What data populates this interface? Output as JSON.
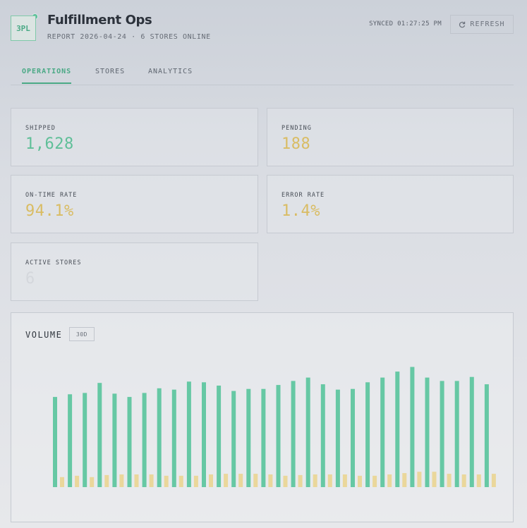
{
  "header": {
    "logo_text": "3PL",
    "title": "Fulfillment Ops",
    "subtitle": "REPORT 2026-04-24 · 6 STORES ONLINE",
    "synced": "SYNCED 01:27:25 PM",
    "refresh_label": "REFRESH"
  },
  "tabs": [
    {
      "label": "OPERATIONS",
      "active": true
    },
    {
      "label": "STORES",
      "active": false
    },
    {
      "label": "ANALYTICS",
      "active": false
    }
  ],
  "metrics": [
    {
      "label": "SHIPPED",
      "value": "1,628",
      "color": "#5fbf98"
    },
    {
      "label": "PENDING",
      "value": "188",
      "color": "#d9bc63"
    },
    {
      "label": "ON-TIME RATE",
      "value": "94.1%",
      "color": "#d9bc63"
    },
    {
      "label": "ERROR RATE",
      "value": "1.4%",
      "color": "#d9bc63"
    },
    {
      "label": "ACTIVE STORES",
      "value": "6",
      "color": "#d4d7dc"
    }
  ],
  "volume": {
    "title": "VOLUME",
    "range_label": "30D"
  },
  "chart_data": {
    "type": "bar",
    "ylim": [
      0,
      190
    ],
    "grid": false,
    "colors": {
      "shipped": "#66c8a4",
      "pending": "#ead79b"
    },
    "series": [
      {
        "key": "shipped",
        "values": [
          135,
          139,
          141,
          156,
          140,
          135,
          141,
          148,
          146,
          158,
          157,
          152,
          144,
          147,
          147,
          153,
          159,
          164,
          154,
          146,
          147,
          157,
          164,
          173,
          180,
          164,
          159,
          159,
          165,
          154
        ]
      },
      {
        "key": "pending",
        "values": [
          15,
          17,
          15,
          18,
          19,
          19,
          19,
          17,
          17,
          17,
          19,
          20,
          20,
          20,
          19,
          17,
          18,
          19,
          19,
          19,
          17,
          17,
          19,
          21,
          23,
          23,
          20,
          19,
          19,
          20
        ]
      }
    ]
  }
}
